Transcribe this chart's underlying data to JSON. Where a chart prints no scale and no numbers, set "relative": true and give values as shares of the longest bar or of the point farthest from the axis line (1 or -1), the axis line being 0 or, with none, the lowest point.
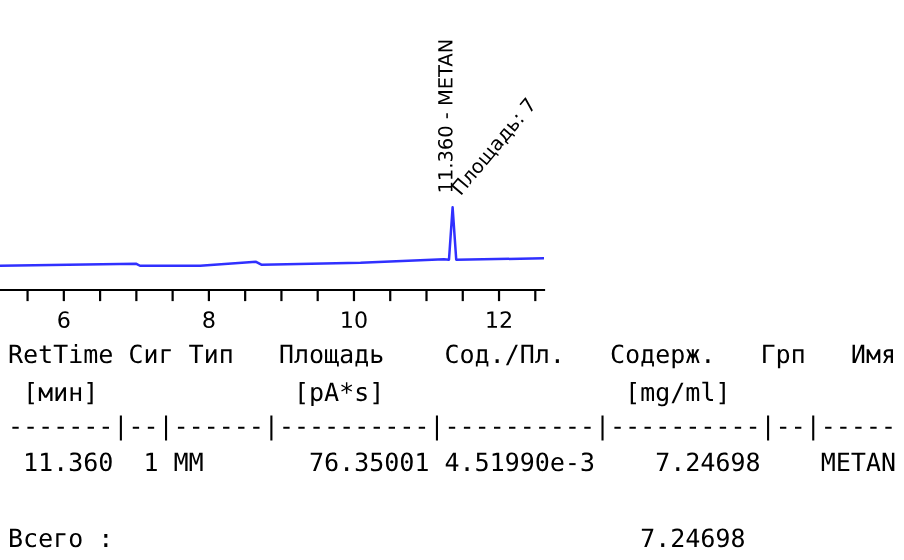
{
  "chart_data": {
    "type": "line",
    "relative": true,
    "x": [
      5.12,
      7.0,
      7.05,
      7.88,
      8.65,
      8.73,
      10.09,
      11.24,
      11.31,
      11.36,
      11.41,
      12.62
    ],
    "series": [
      {
        "color": "#3030ff",
        "values": [
          0.293,
          0.317,
          0.293,
          0.293,
          0.341,
          0.305,
          0.329,
          0.373,
          0.366,
          1,
          0.366,
          0.383
        ]
      }
    ],
    "xlim": [
      5.12,
      12.62
    ],
    "xticks": [
      {
        "value": 5.5,
        "label": null
      },
      6,
      {
        "value": 6.5,
        "label": null
      },
      {
        "value": 7,
        "label": null
      },
      {
        "value": 7.5,
        "label": null
      },
      8,
      {
        "value": 8.5,
        "label": null
      },
      {
        "value": 9,
        "label": null
      },
      {
        "value": 9.5,
        "label": null
      },
      10,
      {
        "value": 10.5,
        "label": null
      },
      {
        "value": 11,
        "label": null
      },
      {
        "value": 11.5,
        "label": null
      },
      12,
      {
        "value": 12.5,
        "label": null
      }
    ],
    "grid": false,
    "legend": false,
    "tick_labels": "x",
    "annotations": [
      {
        "text": "11.360 - METAN",
        "x": 11.36,
        "y": 1
      },
      {
        "text": "Площадь: 7",
        "x": 11.36,
        "y": 1
      },
      "RetTime Сиг Тип   Площадь    Сод./Пл.   Содерж.   Грп   Имя",
      " [мин]             [pA*s]                [mg/ml]",
      "-------|--|------|----------|----------|----------|--|-----",
      " 11.360  1 MM       76.35001 4.51990e-3    7.24698    METAN",
      "Всего :                                   7.24698"
    ]
  }
}
